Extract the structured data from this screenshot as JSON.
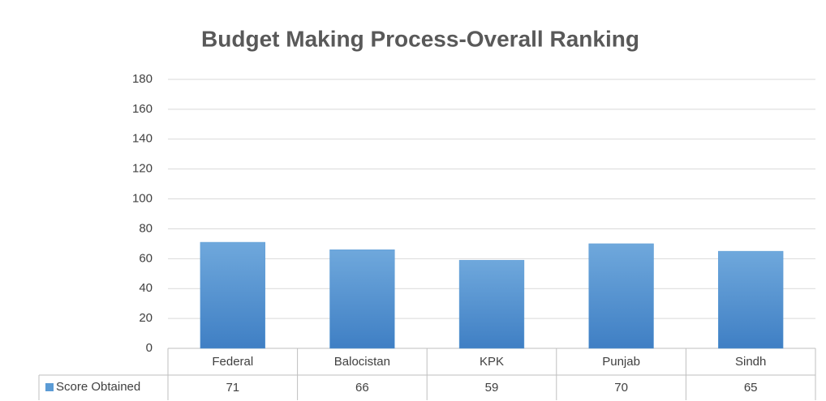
{
  "chart_data": {
    "type": "bar",
    "title": "Budget Making Process-Overall Ranking",
    "categories": [
      "Federal",
      "Balocistan",
      "KPK",
      "Punjab",
      "Sindh"
    ],
    "series": [
      {
        "name": "Score Obtained",
        "color": "#5b9bd5",
        "values": [
          71,
          66,
          59,
          70,
          65
        ]
      }
    ],
    "ylim": [
      0,
      180
    ],
    "yticks": [
      0,
      20,
      40,
      60,
      80,
      100,
      120,
      140,
      160,
      180
    ],
    "grid": true
  }
}
